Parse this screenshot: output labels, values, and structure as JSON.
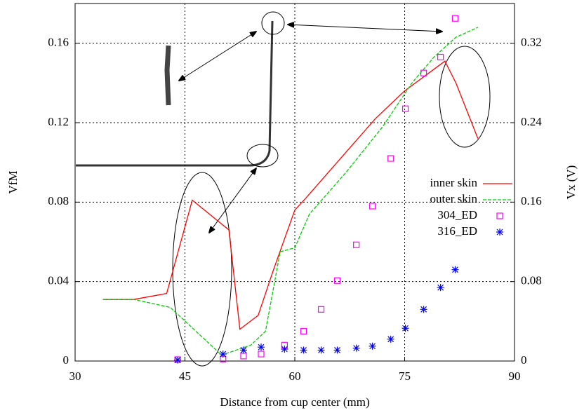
{
  "chart_data": {
    "type": "line",
    "xlabel": "Distance from cup center (mm)",
    "ylabel": "VfM",
    "y2label": "Vx (V)",
    "xlim": [
      30,
      90
    ],
    "xticks": [
      30,
      45,
      60,
      75,
      90
    ],
    "ylim": [
      0,
      0.18
    ],
    "yticks": [
      0,
      0.04,
      0.08,
      0.12,
      0.16
    ],
    "y2lim": [
      0,
      0.36
    ],
    "y2ticks": [
      0,
      0.08,
      0.16,
      0.24,
      0.32
    ],
    "grid": true,
    "legend": "right",
    "series": [
      {
        "name": "inner skin",
        "color": "#ff0000",
        "axis": "y",
        "x": [
          33.8,
          38,
          42.5,
          46,
          51,
          52.5,
          55,
          57,
          60,
          61.5,
          71,
          75,
          80.5,
          82,
          85
        ],
        "values": [
          0.031,
          0.031,
          0.034,
          0.081,
          0.066,
          0.016,
          0.023,
          0.045,
          0.076,
          0.082,
          0.122,
          0.136,
          0.151,
          0.14,
          0.112
        ]
      },
      {
        "name": "outer skin",
        "color": "#00cc00",
        "axis": "y",
        "dashed": true,
        "x": [
          33.8,
          38,
          43,
          50,
          54,
          56,
          58,
          60,
          62,
          67,
          72,
          76,
          79,
          82,
          85
        ],
        "values": [
          0.031,
          0.031,
          0.027,
          0.003,
          0.008,
          0.015,
          0.055,
          0.057,
          0.074,
          0.095,
          0.118,
          0.14,
          0.153,
          0.163,
          0.168
        ]
      },
      {
        "name": "304_ED",
        "color": "#ff00ff",
        "axis": "y2",
        "marker": "square",
        "x": [
          44.0,
          50.2,
          53.0,
          55.4,
          58.6,
          61.2,
          63.6,
          65.8,
          68.4,
          70.6,
          73.1,
          75.1,
          77.6,
          79.9,
          81.9
        ],
        "values": [
          0.0014,
          0.002,
          0.005,
          0.007,
          0.016,
          0.03,
          0.052,
          0.081,
          0.117,
          0.156,
          0.204,
          0.254,
          0.29,
          0.306,
          0.345
        ]
      },
      {
        "name": "316_ED",
        "color": "#0000ff",
        "axis": "y2",
        "marker": "asterisk",
        "x": [
          44.0,
          50.2,
          53.0,
          55.4,
          58.6,
          61.2,
          63.6,
          65.8,
          68.4,
          70.6,
          73.1,
          75.1,
          77.6,
          79.9,
          81.9
        ],
        "values": [
          0.001,
          0.007,
          0.011,
          0.014,
          0.012,
          0.011,
          0.011,
          0.011,
          0.013,
          0.015,
          0.022,
          0.033,
          0.052,
          0.074,
          0.092
        ]
      }
    ]
  }
}
